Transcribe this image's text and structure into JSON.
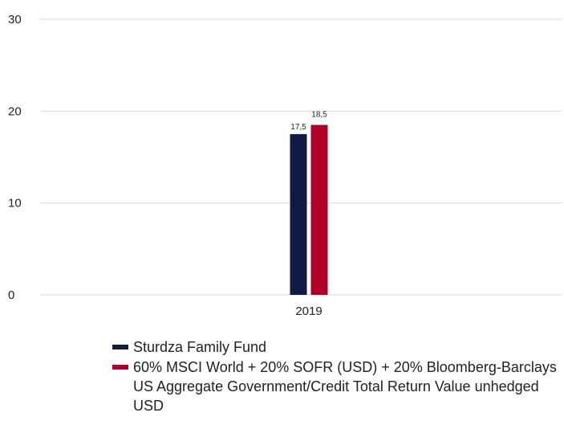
{
  "chart_data": {
    "type": "bar",
    "categories": [
      "2019"
    ],
    "series": [
      {
        "name": "Sturdza Family Fund",
        "values": [
          17.5
        ],
        "labels": [
          "17,5"
        ],
        "color": "#0f1a45"
      },
      {
        "name": "60% MSCI World + 20% SOFR (USD) + 20% Bloomberg-Barclays US Aggregate Government/Credit Total Return Value unhedged USD",
        "values": [
          18.5
        ],
        "labels": [
          "18,5"
        ],
        "color": "#b0002a"
      }
    ],
    "yticks": [
      "0",
      "10",
      "20",
      "30"
    ],
    "ylim": [
      0,
      30
    ],
    "grid": true,
    "legend_position": "bottom"
  }
}
